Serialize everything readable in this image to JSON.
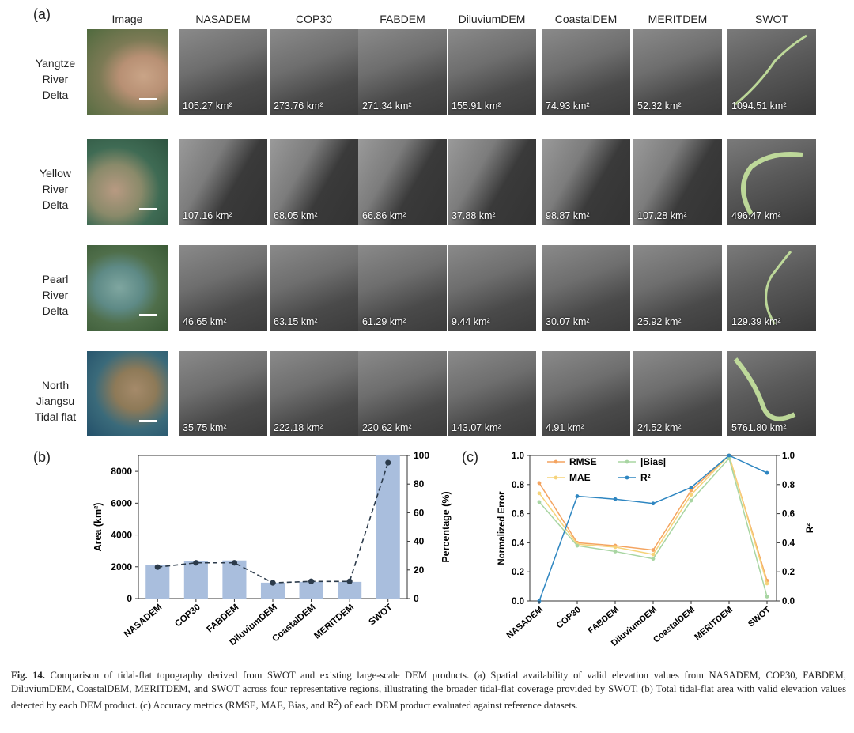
{
  "panel_a": {
    "letter": "(a)",
    "columns": [
      "Image",
      "NASADEM",
      "COP30",
      "FABDEM",
      "DiluviumDEM",
      "CoastalDEM",
      "MERITDEM",
      "SWOT"
    ],
    "rows": [
      {
        "label": [
          "Yangtze",
          "River",
          "Delta"
        ],
        "areas": [
          "105.27 km²",
          "273.76 km²",
          "271.34 km²",
          "155.91 km²",
          "74.93 km²",
          "52.32 km²",
          "1094.51 km²"
        ]
      },
      {
        "label": [
          "Yellow",
          "River",
          "Delta"
        ],
        "areas": [
          "107.16 km²",
          "68.05 km²",
          "66.86 km²",
          "37.88 km²",
          "98.87 km²",
          "107.28 km²",
          "496.47 km²"
        ]
      },
      {
        "label": [
          "Pearl",
          "River",
          "Delta"
        ],
        "areas": [
          "46.65 km²",
          "63.15 km²",
          "61.29 km²",
          "9.44 km²",
          "30.07 km²",
          "25.92 km²",
          "129.39 km²"
        ]
      },
      {
        "label": [
          "North",
          "Jiangsu",
          "Tidal flat"
        ],
        "areas": [
          "35.75 km²",
          "222.18 km²",
          "220.62 km²",
          "143.07 km²",
          "4.91 km²",
          "24.52 km²",
          "5761.80 km²"
        ]
      }
    ]
  },
  "panel_b": {
    "letter": "(b)"
  },
  "panel_c": {
    "letter": "(c)"
  },
  "chart_data": [
    {
      "type": "bar",
      "categories": [
        "NASADEM",
        "COP30",
        "FABDEM",
        "DiluviumDEM",
        "CoastalDEM",
        "MERITDEM",
        "SWOT"
      ],
      "series": [
        {
          "name": "Area",
          "values": [
            2100,
            2350,
            2400,
            1000,
            1050,
            1050,
            9050
          ],
          "color": "#a9bedd"
        },
        {
          "name": "Percentage",
          "values": [
            22,
            25,
            25,
            11,
            12,
            12,
            95
          ],
          "color": "#2b3a4a"
        }
      ],
      "ylabel": "Area (km²)",
      "ylabel_right": "Percentage (%)",
      "ylim": [
        0,
        9000
      ],
      "ylim_right": [
        0,
        100
      ],
      "yticks": [
        0,
        2000,
        4000,
        6000,
        8000
      ],
      "yticks_right": [
        0,
        20,
        40,
        60,
        80,
        100
      ]
    },
    {
      "type": "line",
      "categories": [
        "NASADEM",
        "COP30",
        "FABDEM",
        "DiluviumDEM",
        "CoastalDEM",
        "MERITDEM",
        "SWOT"
      ],
      "series": [
        {
          "name": "RMSE",
          "values": [
            0.81,
            0.4,
            0.38,
            0.35,
            0.76,
            1.0,
            0.14
          ],
          "color": "#f4a460",
          "axis": "left"
        },
        {
          "name": "MAE",
          "values": [
            0.74,
            0.39,
            0.37,
            0.32,
            0.73,
            1.0,
            0.12
          ],
          "color": "#f6d37a",
          "axis": "left"
        },
        {
          "name": "|Bias|",
          "values": [
            0.68,
            0.38,
            0.34,
            0.29,
            0.69,
            0.98,
            0.03
          ],
          "color": "#a8d5a2",
          "axis": "left"
        },
        {
          "name": "R²",
          "values": [
            0.0,
            0.72,
            0.7,
            0.67,
            0.78,
            1.0,
            0.88
          ],
          "color": "#2e86c1",
          "axis": "right"
        }
      ],
      "ylabel": "Normalized Error",
      "ylabel_right": "R²",
      "ylim": [
        0,
        1.0
      ],
      "ylim_right": [
        0,
        1.0
      ],
      "yticks": [
        "0.0",
        "0.2",
        "0.4",
        "0.6",
        "0.8",
        "1.0"
      ],
      "yticks_right": [
        "0.0",
        "0.2",
        "0.4",
        "0.6",
        "0.8",
        "1.0"
      ]
    }
  ],
  "caption": {
    "fig_label": "Fig. 14.",
    "text_1": " Comparison of tidal-flat topography derived from SWOT and existing large-scale DEM products. (a) Spatial availability of valid elevation values from NASADEM, COP30, FABDEM, DiluviumDEM, CoastalDEM, MERITDEM, and SWOT across four representative regions, illustrating the broader tidal-flat coverage provided by SWOT. (b) Total tidal-flat area with valid elevation values detected by each DEM product. (c) Accuracy metrics (RMSE, MAE, Bias, and R",
    "sup": "2",
    "text_2": ") of each DEM product evaluated against reference datasets."
  }
}
